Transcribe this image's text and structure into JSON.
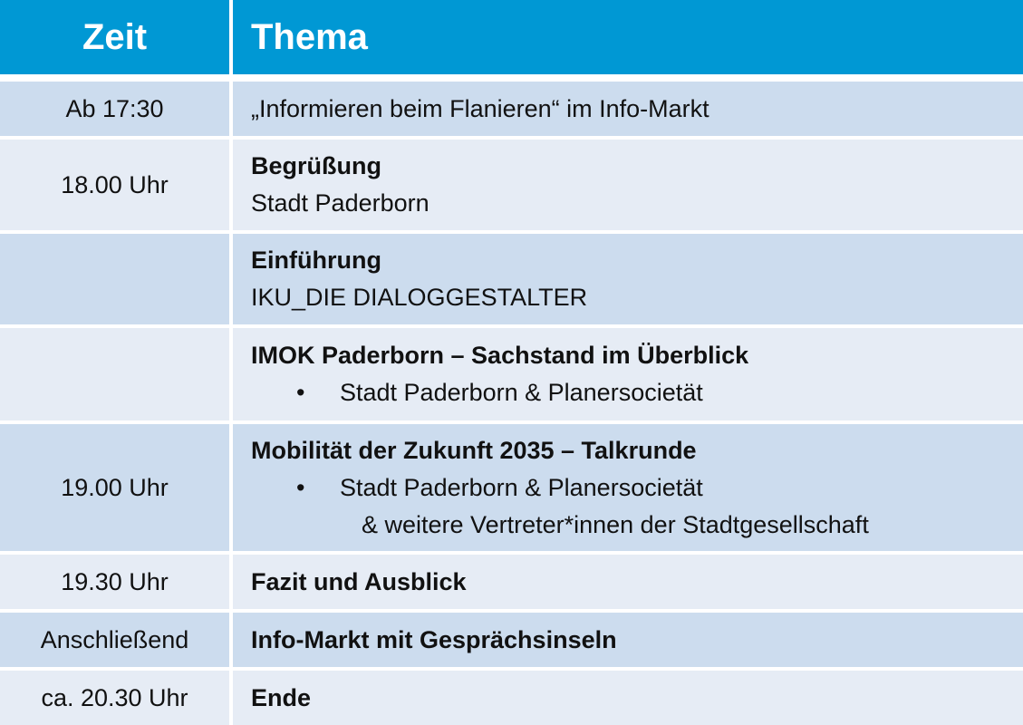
{
  "header": {
    "time": "Zeit",
    "topic": "Thema"
  },
  "rows": [
    {
      "time": "Ab 17:30",
      "lines": [
        "„Informieren beim Flanieren“ im Info-Markt"
      ]
    },
    {
      "time": "18.00 Uhr",
      "title": "Begrüßung",
      "sub": "Stadt Paderborn"
    },
    {
      "time": "",
      "title": "Einführung",
      "sub": "IKU_DIE DIALOGGESTALTER"
    },
    {
      "time": "",
      "title": "IMOK Paderborn – Sachstand im Überblick",
      "bullet": "•",
      "bullet_text": "Stadt Paderborn & Planersocietät"
    },
    {
      "time": "19.00 Uhr",
      "title": "Mobilität der Zukunft 2035 – Talkrunde",
      "bullet": "•",
      "bullet_text": "Stadt Paderborn & Planersocietät",
      "continuation": "& weitere Vertreter*innen der Stadtgesellschaft"
    },
    {
      "time": "19.30 Uhr",
      "title": "Fazit und Ausblick"
    },
    {
      "time": "Anschließend",
      "title": "Info-Markt mit Gesprächsinseln"
    },
    {
      "time": "ca. 20.30 Uhr",
      "title": "Ende"
    }
  ],
  "colors": {
    "header": "#0098d4",
    "row_dark": "#ccdcee",
    "row_light": "#e6ecf5"
  }
}
